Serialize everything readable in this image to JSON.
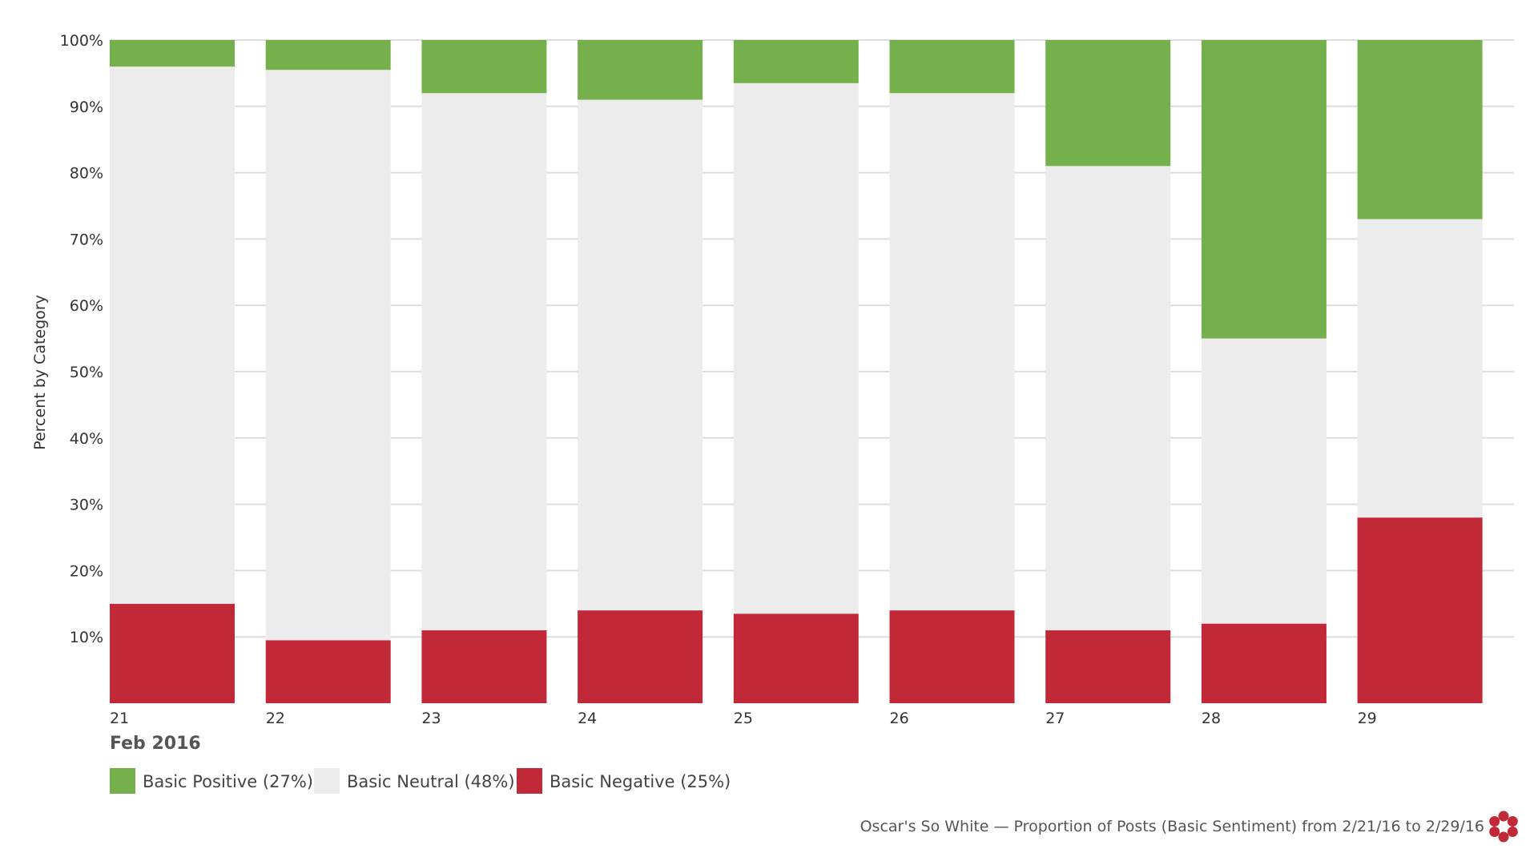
{
  "chart_data": {
    "type": "bar",
    "stacked": true,
    "categories": [
      "21",
      "22",
      "23",
      "24",
      "25",
      "26",
      "27",
      "28",
      "29"
    ],
    "x_group_label": "Feb 2016",
    "ylabel": "Percent by Category",
    "yticks": [
      "10%",
      "20%",
      "30%",
      "40%",
      "50%",
      "60%",
      "70%",
      "80%",
      "90%",
      "100%"
    ],
    "ylim": [
      0,
      100
    ],
    "grid": true,
    "legend_position": "bottom-left",
    "series": [
      {
        "name": "Basic Negative",
        "legend_label": "Basic Negative (25%)",
        "color": "#c12838",
        "values": [
          15,
          9.5,
          11,
          14,
          13.5,
          14,
          11,
          12,
          28
        ]
      },
      {
        "name": "Basic Neutral",
        "legend_label": "Basic Neutral (48%)",
        "color": "#ececec",
        "values": [
          81,
          86,
          81,
          77,
          80,
          78,
          70,
          43,
          45
        ]
      },
      {
        "name": "Basic Positive",
        "legend_label": "Basic Positive (27%)",
        "color": "#76b04c",
        "values": [
          4,
          4.5,
          8,
          9,
          6.5,
          8,
          19,
          45,
          27
        ]
      }
    ],
    "legend_order": [
      "Basic Positive",
      "Basic Neutral",
      "Basic Negative"
    ],
    "caption": "Oscar's So White — Proportion of Posts (Basic Sentiment) from 2/21/16 to 2/29/16"
  },
  "logo": {
    "name": "flower-logo-icon",
    "color": "#c12838"
  }
}
